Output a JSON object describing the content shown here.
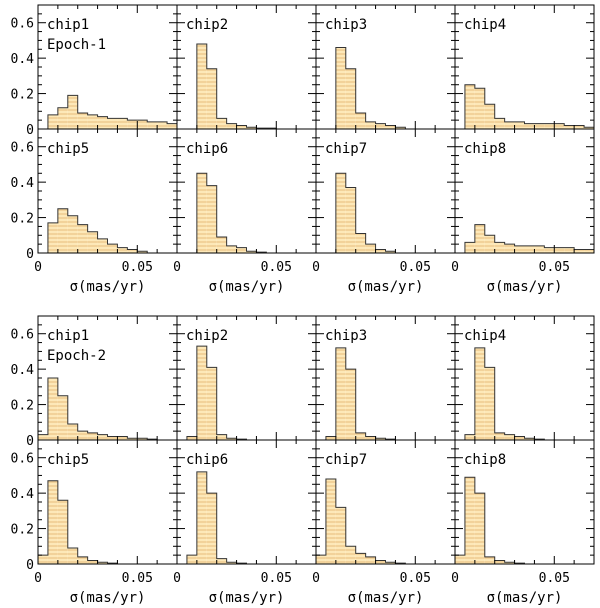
{
  "chart_data": {
    "type": "bar",
    "layout": "two epoch blocks, each a 2x4 grid of histogram panels",
    "xlabel": "σ(mas/yr)",
    "x_ticks": [
      0,
      0.05
    ],
    "x_tick_labels": [
      "0",
      "0.05"
    ],
    "xlim": [
      0,
      0.07
    ],
    "y_ticks": [
      0,
      0.2,
      0.4,
      0.6
    ],
    "y_tick_labels": [
      "0",
      "0.2",
      "0.4",
      "0.6"
    ],
    "ylim": [
      0,
      0.7
    ],
    "bin_width": 0.005,
    "bin_start": 0,
    "fill_color": "#fde8b8",
    "hatch_color": "#e2b26e",
    "edge_color": "#333333",
    "epochs": [
      {
        "name": "Epoch-1",
        "panels": [
          {
            "label": "chip1",
            "values": [
              0,
              0.08,
              0.12,
              0.19,
              0.09,
              0.08,
              0.07,
              0.06,
              0.06,
              0.05,
              0.05,
              0.04,
              0.04,
              0.03
            ]
          },
          {
            "label": "chip2",
            "values": [
              0,
              0,
              0.48,
              0.34,
              0.06,
              0.03,
              0.02,
              0.01,
              0.005,
              0.005,
              0,
              0,
              0,
              0
            ]
          },
          {
            "label": "chip3",
            "values": [
              0,
              0,
              0.46,
              0.34,
              0.09,
              0.04,
              0.03,
              0.02,
              0.01,
              0,
              0,
              0,
              0,
              0
            ]
          },
          {
            "label": "chip4",
            "values": [
              0,
              0.25,
              0.23,
              0.14,
              0.06,
              0.04,
              0.04,
              0.03,
              0.03,
              0.03,
              0.03,
              0.02,
              0.02,
              0.01
            ]
          },
          {
            "label": "chip5",
            "values": [
              0,
              0.17,
              0.25,
              0.21,
              0.16,
              0.12,
              0.08,
              0.05,
              0.03,
              0.02,
              0.01,
              0,
              0,
              0
            ]
          },
          {
            "label": "chip6",
            "values": [
              0,
              0,
              0.45,
              0.38,
              0.09,
              0.04,
              0.03,
              0.01,
              0.005,
              0,
              0,
              0,
              0,
              0
            ]
          },
          {
            "label": "chip7",
            "values": [
              0,
              0,
              0.45,
              0.37,
              0.11,
              0.05,
              0.02,
              0.01,
              0,
              0,
              0,
              0,
              0,
              0
            ]
          },
          {
            "label": "chip8",
            "values": [
              0,
              0.06,
              0.16,
              0.1,
              0.06,
              0.05,
              0.04,
              0.04,
              0.04,
              0.03,
              0.03,
              0.03,
              0.02,
              0.02
            ]
          }
        ]
      },
      {
        "name": "Epoch-2",
        "panels": [
          {
            "label": "chip1",
            "values": [
              0.03,
              0.35,
              0.25,
              0.09,
              0.05,
              0.04,
              0.03,
              0.02,
              0.02,
              0.01,
              0.01,
              0.005,
              0,
              0
            ]
          },
          {
            "label": "chip2",
            "values": [
              0,
              0.02,
              0.53,
              0.41,
              0.03,
              0.01,
              0.005,
              0,
              0,
              0,
              0,
              0,
              0,
              0
            ]
          },
          {
            "label": "chip3",
            "values": [
              0,
              0.02,
              0.52,
              0.4,
              0.04,
              0.02,
              0.01,
              0.005,
              0,
              0,
              0,
              0,
              0,
              0
            ]
          },
          {
            "label": "chip4",
            "values": [
              0,
              0.03,
              0.52,
              0.41,
              0.04,
              0.03,
              0.02,
              0.01,
              0.005,
              0,
              0,
              0,
              0,
              0
            ]
          },
          {
            "label": "chip5",
            "values": [
              0.05,
              0.47,
              0.36,
              0.09,
              0.04,
              0.02,
              0.01,
              0.005,
              0,
              0,
              0,
              0,
              0,
              0
            ]
          },
          {
            "label": "chip6",
            "values": [
              0,
              0.05,
              0.52,
              0.4,
              0.03,
              0.01,
              0.005,
              0,
              0,
              0,
              0,
              0,
              0,
              0
            ]
          },
          {
            "label": "chip7",
            "values": [
              0.05,
              0.48,
              0.32,
              0.1,
              0.06,
              0.04,
              0.02,
              0.01,
              0.005,
              0,
              0,
              0,
              0,
              0
            ]
          },
          {
            "label": "chip8",
            "values": [
              0.05,
              0.49,
              0.4,
              0.04,
              0.02,
              0.01,
              0.005,
              0,
              0,
              0,
              0,
              0,
              0,
              0
            ]
          }
        ]
      }
    ]
  }
}
